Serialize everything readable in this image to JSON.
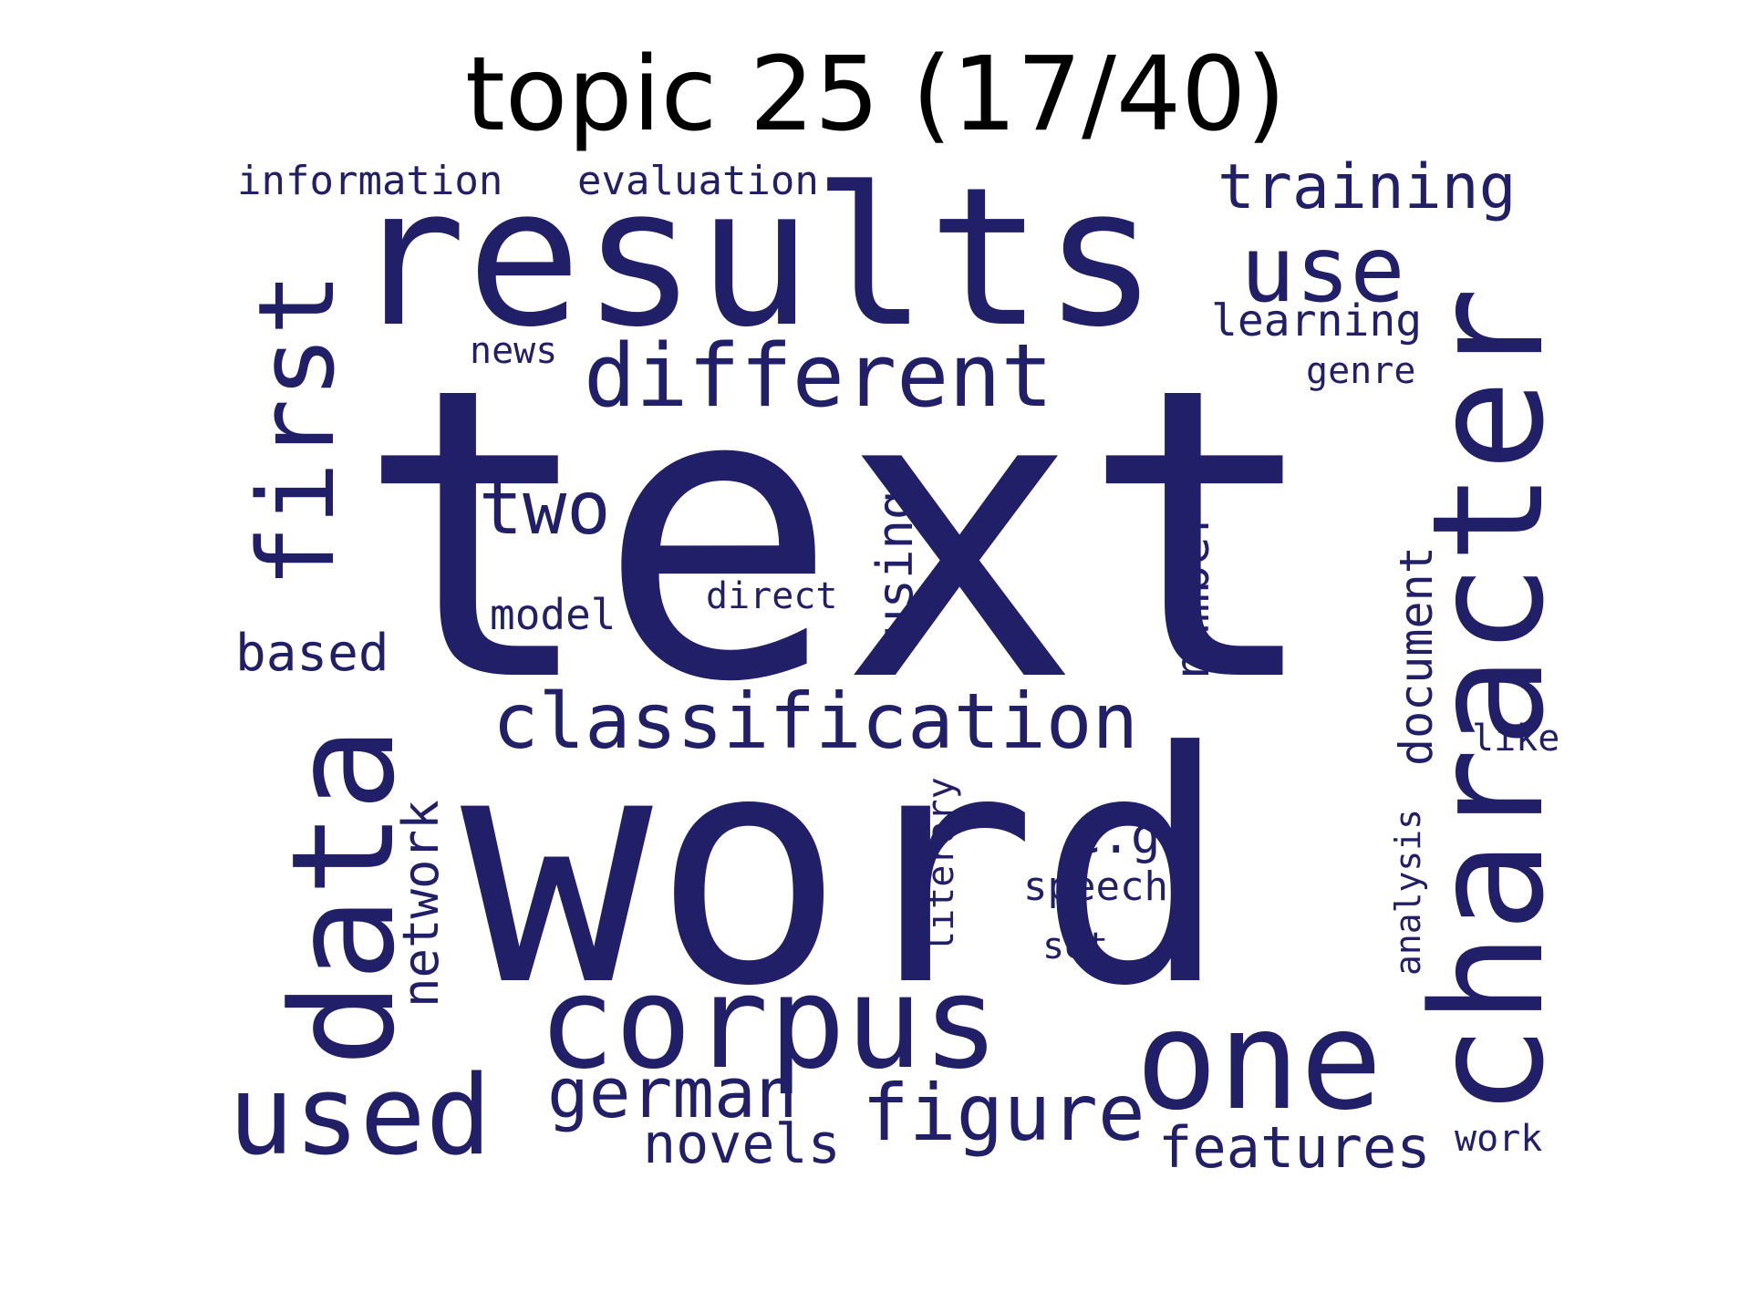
{
  "title": "topic 25 (17/40)",
  "colors": {
    "word_color": "#211f68",
    "title_color": "#000000",
    "background": "#ffffff"
  },
  "words": [
    {
      "text": "text",
      "orientation": "horizontal"
    },
    {
      "text": "word",
      "orientation": "horizontal"
    },
    {
      "text": "results",
      "orientation": "horizontal"
    },
    {
      "text": "character",
      "orientation": "vertical"
    },
    {
      "text": "data",
      "orientation": "vertical"
    },
    {
      "text": "corpus",
      "orientation": "horizontal"
    },
    {
      "text": "one",
      "orientation": "horizontal"
    },
    {
      "text": "first",
      "orientation": "vertical"
    },
    {
      "text": "used",
      "orientation": "horizontal"
    },
    {
      "text": "different",
      "orientation": "horizontal"
    },
    {
      "text": "use",
      "orientation": "horizontal"
    },
    {
      "text": "classification",
      "orientation": "horizontal"
    },
    {
      "text": "figure",
      "orientation": "horizontal"
    },
    {
      "text": "german",
      "orientation": "horizontal"
    },
    {
      "text": "two",
      "orientation": "horizontal"
    },
    {
      "text": "training",
      "orientation": "horizontal"
    },
    {
      "text": "features",
      "orientation": "horizontal"
    },
    {
      "text": "network",
      "orientation": "vertical"
    },
    {
      "text": "novels",
      "orientation": "horizontal"
    },
    {
      "text": "based",
      "orientation": "horizontal"
    },
    {
      "text": "number",
      "orientation": "vertical"
    },
    {
      "text": "document",
      "orientation": "vertical"
    },
    {
      "text": "using",
      "orientation": "vertical"
    },
    {
      "text": "e.g",
      "orientation": "horizontal"
    },
    {
      "text": "learning",
      "orientation": "horizontal"
    },
    {
      "text": "information",
      "orientation": "horizontal"
    },
    {
      "text": "evaluation",
      "orientation": "horizontal"
    },
    {
      "text": "model",
      "orientation": "horizontal"
    },
    {
      "text": "speech",
      "orientation": "horizontal"
    },
    {
      "text": "literary",
      "orientation": "vertical"
    },
    {
      "text": "analysis",
      "orientation": "vertical"
    },
    {
      "text": "direct",
      "orientation": "horizontal"
    },
    {
      "text": "news",
      "orientation": "horizontal"
    },
    {
      "text": "genre",
      "orientation": "horizontal"
    },
    {
      "text": "set",
      "orientation": "horizontal"
    },
    {
      "text": "like",
      "orientation": "horizontal"
    },
    {
      "text": "work",
      "orientation": "horizontal"
    }
  ]
}
